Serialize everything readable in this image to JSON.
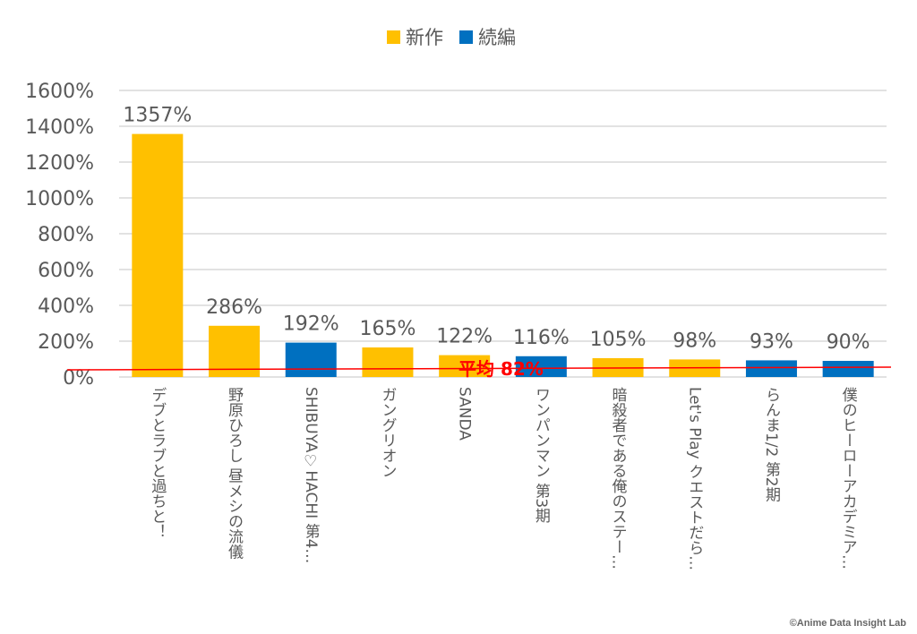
{
  "legend": [
    {
      "label": "新作",
      "color": "#FFC000"
    },
    {
      "label": "続編",
      "color": "#0070C0"
    }
  ],
  "chart_data": {
    "type": "bar",
    "categories": [
      "デブとラブと過ちと！",
      "野原ひろし 昼メシの流儀",
      "SHIBUYA♡HACHI 第4…",
      "ガングリオン",
      "SANDA",
      "ワンパンマン 第3期",
      "暗殺者である俺のステー…",
      "Let's Play クエストだら…",
      "らんま1/2 第2期",
      "僕のヒーローアカデミア…"
    ],
    "values": [
      1357,
      286,
      192,
      165,
      122,
      116,
      105,
      98,
      93,
      90
    ],
    "data_labels": [
      "1357%",
      "286%",
      "192%",
      "165%",
      "122%",
      "116%",
      "105%",
      "98%",
      "93%",
      "90%"
    ],
    "series_type": [
      "新作",
      "新作",
      "続編",
      "新作",
      "新作",
      "続編",
      "新作",
      "新作",
      "続編",
      "続編"
    ],
    "ylim": [
      0,
      1600
    ],
    "yticks": [
      "0%",
      "200%",
      "400%",
      "600%",
      "800%",
      "1000%",
      "1200%",
      "1400%",
      "1600%"
    ],
    "grid": true,
    "legend_position": "top",
    "average": {
      "label": "平均 82%",
      "value": 82,
      "color": "#FF0000"
    }
  },
  "credit": "©Anime Data Insight Lab"
}
